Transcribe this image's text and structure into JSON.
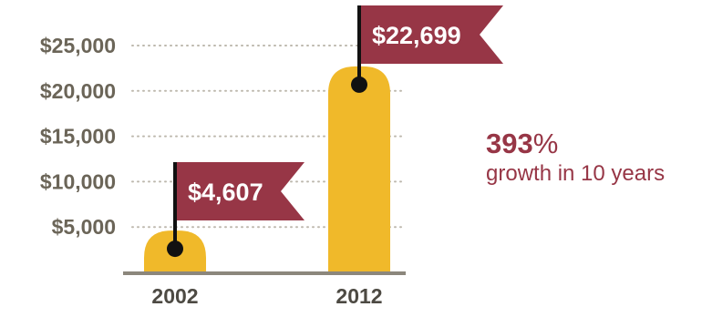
{
  "chart_data": {
    "type": "bar",
    "categories": [
      "2002",
      "2012"
    ],
    "values": [
      4607,
      22699
    ],
    "value_labels": [
      "$4,607",
      "$22,699"
    ],
    "y_ticks": [
      {
        "value": 5000,
        "label": "$5,000"
      },
      {
        "value": 10000,
        "label": "$10,000"
      },
      {
        "value": 15000,
        "label": "$15,000"
      },
      {
        "value": 20000,
        "label": "$20,000"
      },
      {
        "value": 25000,
        "label": "$25,000"
      }
    ],
    "ylim": [
      0,
      25000
    ],
    "grid": true,
    "colors": {
      "bar": "#f0b92a",
      "flag": "#973646",
      "text_axis": "#6b6558",
      "category_text": "#4d4a43",
      "grid": "#bdb8ad",
      "baseline": "#8c877c"
    }
  },
  "annotation": {
    "percent_number": "393",
    "percent_sign": "%",
    "note": "growth in 10 years"
  }
}
